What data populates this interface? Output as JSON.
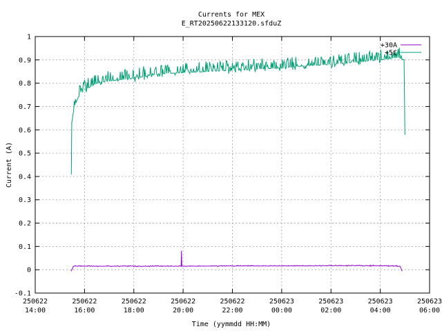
{
  "chart_data": {
    "type": "line",
    "title": "Currents for MEX",
    "subtitle": "E_RT20250622133120.sfduZ",
    "xlabel": "Time (yymmdd HH:MM)",
    "ylabel": "Current (A)",
    "x_ticks": [
      {
        "date": "250622",
        "time": "14:00"
      },
      {
        "date": "250622",
        "time": "16:00"
      },
      {
        "date": "250622",
        "time": "18:00"
      },
      {
        "date": "250622",
        "time": "20:00"
      },
      {
        "date": "250622",
        "time": "22:00"
      },
      {
        "date": "250623",
        "time": "00:00"
      },
      {
        "date": "250623",
        "time": "02:00"
      },
      {
        "date": "250623",
        "time": "04:00"
      },
      {
        "date": "250623",
        "time": "06:00"
      }
    ],
    "xlim": [
      "2025-06-22 14:00",
      "2025-06-23 06:00"
    ],
    "ylim": [
      -0.1,
      1
    ],
    "y_ticks": [
      -0.1,
      0,
      0.1,
      0.2,
      0.3,
      0.4,
      0.5,
      0.6,
      0.7,
      0.8,
      0.9,
      1
    ],
    "grid": true,
    "legend_position": "top-right",
    "series": [
      {
        "name": "+30A",
        "color": "#9400d3",
        "points": [
          {
            "t": "2025-06-22 15:28",
            "y": -0.005
          },
          {
            "t": "2025-06-22 15:33",
            "y": 0.015
          },
          {
            "t": "2025-06-22 16:00",
            "y": 0.015
          },
          {
            "t": "2025-06-22 18:00",
            "y": 0.015
          },
          {
            "t": "2025-06-22 19:55",
            "y": 0.015
          },
          {
            "t": "2025-06-22 19:56",
            "y": 0.08
          },
          {
            "t": "2025-06-22 19:57",
            "y": 0.015
          },
          {
            "t": "2025-06-22 22:00",
            "y": 0.016
          },
          {
            "t": "2025-06-23 00:00",
            "y": 0.016
          },
          {
            "t": "2025-06-23 02:00",
            "y": 0.017
          },
          {
            "t": "2025-06-23 04:00",
            "y": 0.017
          },
          {
            "t": "2025-06-23 04:48",
            "y": 0.015
          },
          {
            "t": "2025-06-23 04:53",
            "y": -0.005
          }
        ]
      },
      {
        "name": "+5C",
        "color": "#009e73",
        "points": [
          {
            "t": "2025-06-22 15:28",
            "y": 0.41
          },
          {
            "t": "2025-06-22 15:29",
            "y": 0.63
          },
          {
            "t": "2025-06-22 15:35",
            "y": 0.7
          },
          {
            "t": "2025-06-22 15:45",
            "y": 0.74
          },
          {
            "t": "2025-06-22 16:00",
            "y": 0.77
          },
          {
            "t": "2025-06-22 16:30",
            "y": 0.8
          },
          {
            "t": "2025-06-22 17:00",
            "y": 0.81
          },
          {
            "t": "2025-06-22 18:00",
            "y": 0.82
          },
          {
            "t": "2025-06-22 19:00",
            "y": 0.84
          },
          {
            "t": "2025-06-22 20:00",
            "y": 0.845
          },
          {
            "t": "2025-06-22 21:00",
            "y": 0.85
          },
          {
            "t": "2025-06-22 22:00",
            "y": 0.855
          },
          {
            "t": "2025-06-22 23:00",
            "y": 0.86
          },
          {
            "t": "2025-06-23 00:00",
            "y": 0.865
          },
          {
            "t": "2025-06-23 01:00",
            "y": 0.875
          },
          {
            "t": "2025-06-23 02:00",
            "y": 0.88
          },
          {
            "t": "2025-06-23 03:00",
            "y": 0.89
          },
          {
            "t": "2025-06-23 04:00",
            "y": 0.9
          },
          {
            "t": "2025-06-23 04:45",
            "y": 0.91
          },
          {
            "t": "2025-06-23 04:58",
            "y": 0.9
          },
          {
            "t": "2025-06-23 05:00",
            "y": 0.58
          }
        ]
      }
    ]
  }
}
